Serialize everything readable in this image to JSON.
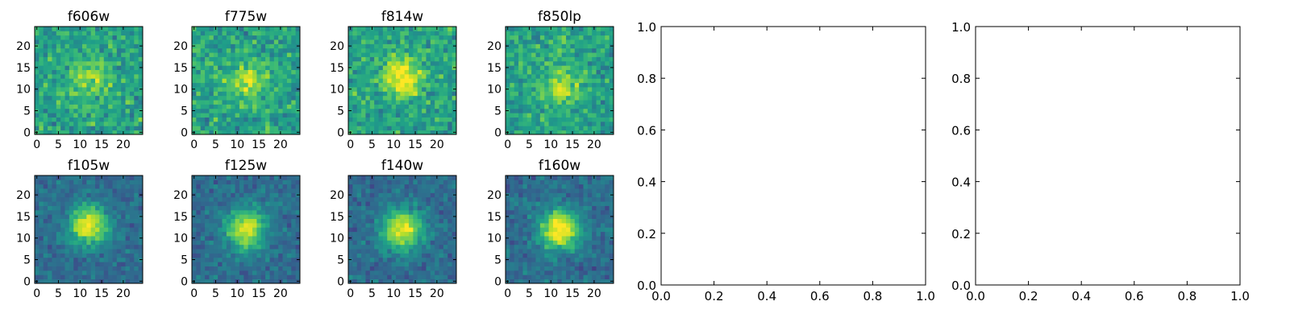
{
  "figure": {
    "background": "#ffffff"
  },
  "chart_data": [
    {
      "type": "heatmap",
      "title": "f606w",
      "x_ticks": [
        0,
        5,
        10,
        15,
        20
      ],
      "y_ticks": [
        0,
        5,
        10,
        15,
        20
      ],
      "xlim": [
        -0.5,
        24.5
      ],
      "ylim": [
        -0.5,
        24.5
      ],
      "grid_size": 25,
      "colormap": "viridis",
      "source_center": [
        12,
        12
      ],
      "source_strength": 0.25
    },
    {
      "type": "heatmap",
      "title": "f775w",
      "x_ticks": [
        0,
        5,
        10,
        15,
        20
      ],
      "y_ticks": [
        0,
        5,
        10,
        15,
        20
      ],
      "xlim": [
        -0.5,
        24.5
      ],
      "ylim": [
        -0.5,
        24.5
      ],
      "grid_size": 25,
      "colormap": "viridis",
      "source_center": [
        12,
        12
      ],
      "source_strength": 0.3
    },
    {
      "type": "heatmap",
      "title": "f814w",
      "x_ticks": [
        0,
        5,
        10,
        15,
        20
      ],
      "y_ticks": [
        0,
        5,
        10,
        15,
        20
      ],
      "xlim": [
        -0.5,
        24.5
      ],
      "ylim": [
        -0.5,
        24.5
      ],
      "grid_size": 25,
      "colormap": "viridis",
      "source_center": [
        12,
        13
      ],
      "source_strength": 0.45
    },
    {
      "type": "heatmap",
      "title": "f850lp",
      "x_ticks": [
        0,
        5,
        10,
        15,
        20
      ],
      "y_ticks": [
        0,
        5,
        10,
        15,
        20
      ],
      "xlim": [
        -0.5,
        24.5
      ],
      "ylim": [
        -0.5,
        24.5
      ],
      "grid_size": 25,
      "colormap": "viridis",
      "source_center": [
        12,
        11
      ],
      "source_strength": 0.3
    },
    {
      "type": "heatmap",
      "title": "f105w",
      "x_ticks": [
        0,
        5,
        10,
        15,
        20
      ],
      "y_ticks": [
        0,
        5,
        10,
        15,
        20
      ],
      "xlim": [
        -0.5,
        24.5
      ],
      "ylim": [
        -0.5,
        24.5
      ],
      "grid_size": 25,
      "colormap": "viridis",
      "source_center": [
        12,
        13
      ],
      "source_strength": 0.85
    },
    {
      "type": "heatmap",
      "title": "f125w",
      "x_ticks": [
        0,
        5,
        10,
        15,
        20
      ],
      "y_ticks": [
        0,
        5,
        10,
        15,
        20
      ],
      "xlim": [
        -0.5,
        24.5
      ],
      "ylim": [
        -0.5,
        24.5
      ],
      "grid_size": 25,
      "colormap": "viridis",
      "source_center": [
        12,
        12
      ],
      "source_strength": 0.8
    },
    {
      "type": "heatmap",
      "title": "f140w",
      "x_ticks": [
        0,
        5,
        10,
        15,
        20
      ],
      "y_ticks": [
        0,
        5,
        10,
        15,
        20
      ],
      "xlim": [
        -0.5,
        24.5
      ],
      "ylim": [
        -0.5,
        24.5
      ],
      "grid_size": 25,
      "colormap": "viridis",
      "source_center": [
        12,
        12
      ],
      "source_strength": 0.85
    },
    {
      "type": "heatmap",
      "title": "f160w",
      "x_ticks": [
        0,
        5,
        10,
        15,
        20
      ],
      "y_ticks": [
        0,
        5,
        10,
        15,
        20
      ],
      "xlim": [
        -0.5,
        24.5
      ],
      "ylim": [
        -0.5,
        24.5
      ],
      "grid_size": 25,
      "colormap": "viridis",
      "source_center": [
        12,
        12
      ],
      "source_strength": 0.95
    },
    {
      "type": "line",
      "title": "",
      "xlim": [
        0,
        1
      ],
      "ylim": [
        0,
        1
      ],
      "x_ticks": [
        "0.0",
        "0.2",
        "0.4",
        "0.6",
        "0.8",
        "1.0"
      ],
      "y_ticks": [
        "0.0",
        "0.2",
        "0.4",
        "0.6",
        "0.8",
        "1.0"
      ],
      "series": []
    },
    {
      "type": "line",
      "title": "",
      "xlim": [
        0,
        1
      ],
      "ylim": [
        0,
        1
      ],
      "x_ticks": [
        "0.0",
        "0.2",
        "0.4",
        "0.6",
        "0.8",
        "1.0"
      ],
      "y_ticks": [
        "0.0",
        "0.2",
        "0.4",
        "0.6",
        "0.8",
        "1.0"
      ],
      "series": []
    }
  ]
}
